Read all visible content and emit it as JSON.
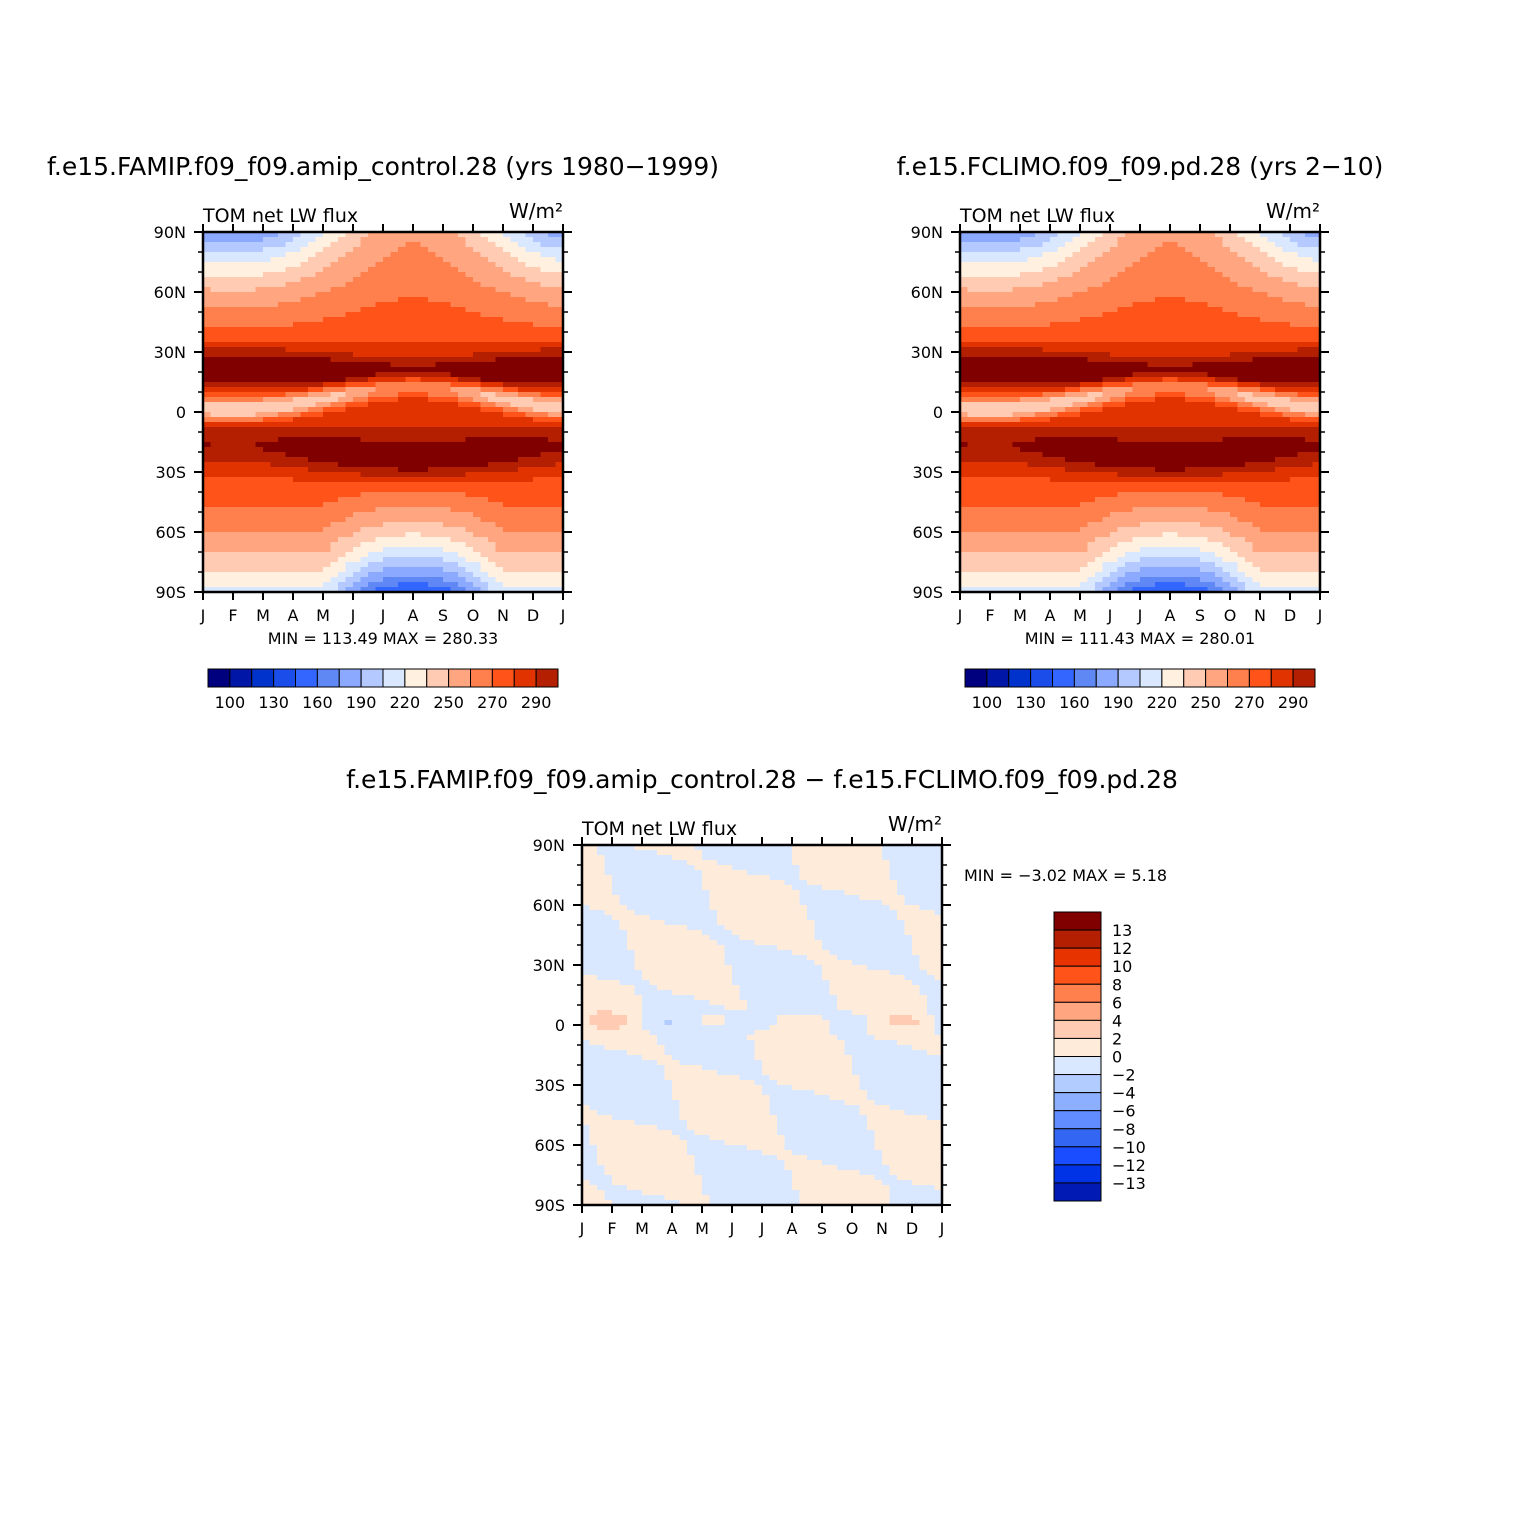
{
  "colors": {
    "abs_palette": [
      "#00007f",
      "#0016a6",
      "#0033cc",
      "#1a4dea",
      "#3366ff",
      "#6088f5",
      "#8aa9ff",
      "#b3c9ff",
      "#d9e8ff",
      "#fff0e0",
      "#ffccb3",
      "#ffa680",
      "#ff7f4d",
      "#ff531a",
      "#e03300",
      "#b31f00",
      "#800000"
    ],
    "diff_palette": [
      "#00007f",
      "#001ab3",
      "#0033e6",
      "#1a4dff",
      "#3366f2",
      "#608cff",
      "#8cb0ff",
      "#b3ccff",
      "#d9e8ff",
      "#ffebd9",
      "#ffccb3",
      "#ffa680",
      "#ff7f4d",
      "#ff531a",
      "#e63300",
      "#b31f00",
      "#800000"
    ]
  },
  "chart_data": [
    {
      "id": "panel1",
      "type": "heatmap",
      "title": "f.e15.FAMIP.f09_f09.amip_control.28 (yrs 1980−1999)",
      "left_label": "TOM  net  LW  flux",
      "units_label": "W/m²",
      "x_tick_labels": [
        "J",
        "F",
        "M",
        "A",
        "M",
        "J",
        "J",
        "A",
        "S",
        "O",
        "N",
        "D",
        "J"
      ],
      "y_tick_labels": [
        "90N",
        "60N",
        "30N",
        "0",
        "30S",
        "60S",
        "90S"
      ],
      "ylim": [
        -90,
        90
      ],
      "stats": "MIN = 113.49  MAX = 280.33",
      "min": 113.49,
      "max": 280.33,
      "colorbar_labels": [
        "100",
        "130",
        "160",
        "190",
        "220",
        "250",
        "270",
        "290"
      ],
      "levels": [
        100,
        110,
        120,
        130,
        140,
        150,
        160,
        170,
        180,
        190,
        200,
        210,
        220,
        230,
        240,
        250,
        260,
        270,
        280,
        290
      ]
    },
    {
      "id": "panel2",
      "type": "heatmap",
      "title": "f.e15.FCLIMO.f09_f09.pd.28 (yrs 2−10)",
      "left_label": "TOM  net  LW  flux",
      "units_label": "W/m²",
      "x_tick_labels": [
        "J",
        "F",
        "M",
        "A",
        "M",
        "J",
        "J",
        "A",
        "S",
        "O",
        "N",
        "D",
        "J"
      ],
      "y_tick_labels": [
        "90N",
        "60N",
        "30N",
        "0",
        "30S",
        "60S",
        "90S"
      ],
      "ylim": [
        -90,
        90
      ],
      "stats": "MIN =  111.43  MAX = 280.01",
      "min": 111.43,
      "max": 280.01,
      "colorbar_labels": [
        "100",
        "130",
        "160",
        "190",
        "220",
        "250",
        "270",
        "290"
      ]
    },
    {
      "id": "panel3",
      "type": "heatmap",
      "title": "f.e15.FAMIP.f09_f09.amip_control.28 − f.e15.FCLIMO.f09_f09.pd.28",
      "left_label": "TOM  net  LW  flux",
      "units_label": "W/m²",
      "x_tick_labels": [
        "J",
        "F",
        "M",
        "A",
        "M",
        "J",
        "J",
        "A",
        "S",
        "O",
        "N",
        "D",
        "J"
      ],
      "y_tick_labels": [
        "90N",
        "60N",
        "30N",
        "0",
        "30S",
        "60S",
        "90S"
      ],
      "ylim": [
        -90,
        90
      ],
      "stats": "MIN =   −3.02  MAX =    5.18",
      "min": -3.02,
      "max": 5.18,
      "colorbar_labels": [
        "13",
        "12",
        "10",
        "8",
        "6",
        "4",
        "2",
        "0",
        "−2",
        "−4",
        "−6",
        "−8",
        "−10",
        "−12",
        "−13"
      ]
    }
  ]
}
